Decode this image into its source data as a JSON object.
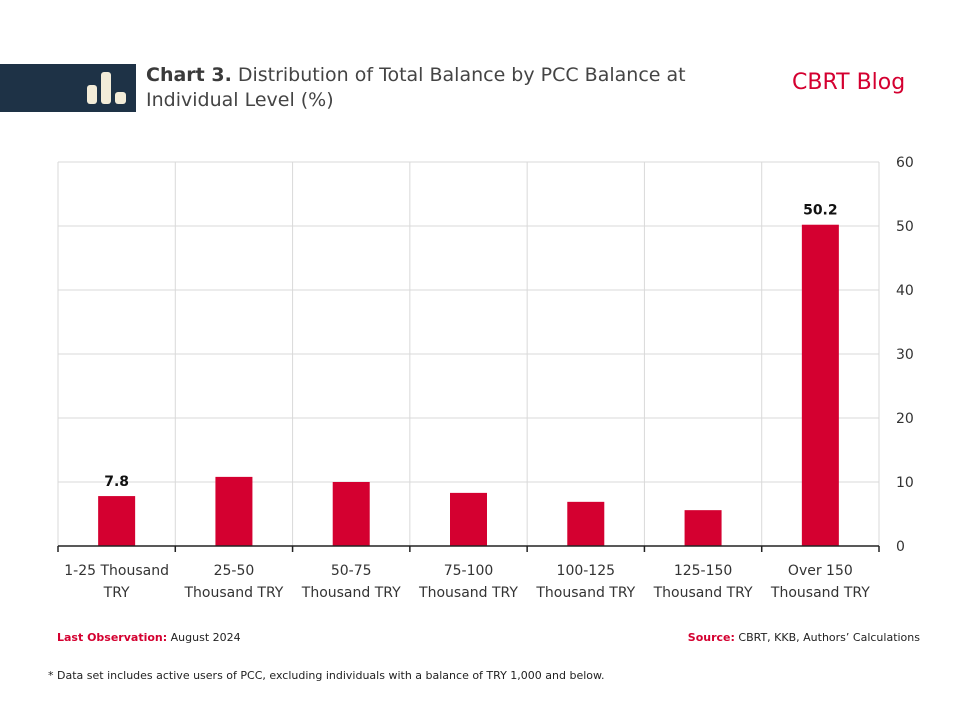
{
  "header": {
    "title_prefix": "Chart 3.",
    "title_text": " Distribution of Total Balance by PCC Balance at Individual Level (%)",
    "brand": "CBRT Blog",
    "icon": "bar-chart-icon"
  },
  "footer": {
    "last_obs_label": "Last Observation:",
    "last_obs_value": " August 2024",
    "source_label": "Source:",
    "source_value": " CBRT, KKB, Authors’ Calculations",
    "note": "* Data set includes active users of PCC, excluding individuals with a balance of TRY 1,000 and below."
  },
  "colors": {
    "bar": "#d40030",
    "header_band": "#1e3246",
    "accent": "#d40030"
  },
  "chart_data": {
    "type": "bar",
    "title": "Distribution of Total Balance by PCC Balance at Individual Level (%)",
    "xlabel": "",
    "ylabel": "",
    "categories": [
      [
        "1-25 Thousand",
        "TRY"
      ],
      [
        "25-50",
        "Thousand TRY"
      ],
      [
        "50-75",
        "Thousand TRY"
      ],
      [
        "75-100",
        "Thousand TRY"
      ],
      [
        "100-125",
        "Thousand TRY"
      ],
      [
        "125-150",
        "Thousand TRY"
      ],
      [
        "Over 150",
        "Thousand TRY"
      ]
    ],
    "values": [
      7.8,
      10.8,
      10.0,
      8.3,
      6.9,
      5.6,
      50.2
    ],
    "data_labels": [
      "7.8",
      "",
      "",
      "",
      "",
      "",
      "50.2"
    ],
    "ylim": [
      0,
      60
    ],
    "yticks": [
      0,
      10,
      20,
      30,
      40,
      50,
      60
    ],
    "y_axis_side": "right",
    "grid": true,
    "legend": "none"
  }
}
